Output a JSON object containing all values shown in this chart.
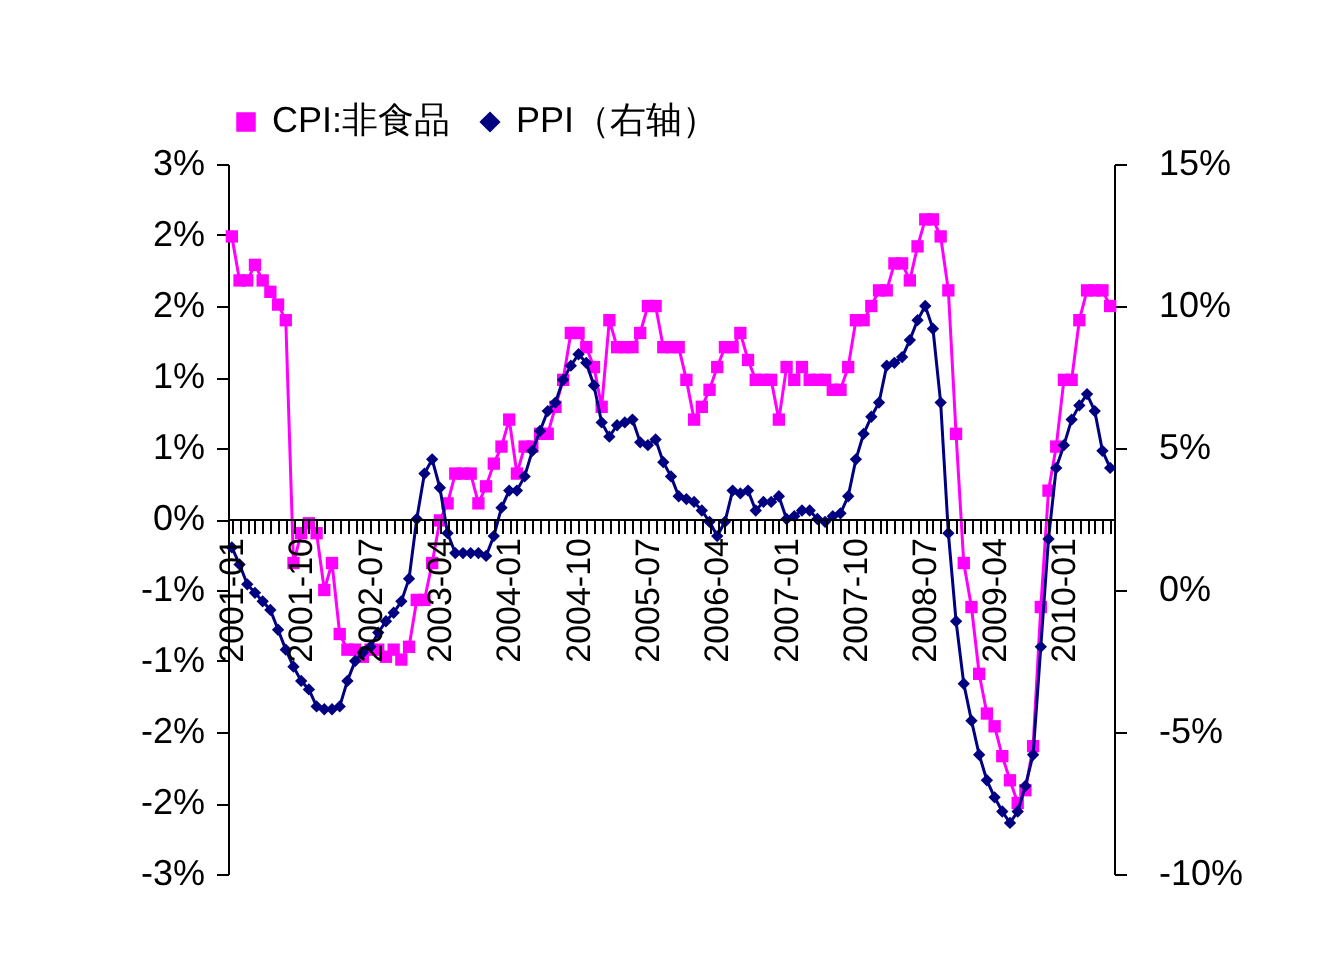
{
  "chart_data": {
    "type": "line",
    "categories": [
      "2001-01",
      null,
      null,
      null,
      null,
      null,
      null,
      null,
      null,
      "2001-10",
      null,
      null,
      null,
      null,
      null,
      null,
      null,
      null,
      "2002-07",
      null,
      null,
      null,
      null,
      null,
      null,
      null,
      null,
      "2003-04",
      null,
      null,
      null,
      null,
      null,
      null,
      null,
      null,
      "2004-01",
      null,
      null,
      null,
      null,
      null,
      null,
      null,
      null,
      "2004-10",
      null,
      null,
      null,
      null,
      null,
      null,
      null,
      null,
      "2005-07",
      null,
      null,
      null,
      null,
      null,
      null,
      null,
      null,
      "2006-04",
      null,
      null,
      null,
      null,
      null,
      null,
      null,
      null,
      "2007-01",
      null,
      null,
      null,
      null,
      null,
      null,
      null,
      null,
      "2007-10",
      null,
      null,
      null,
      null,
      null,
      null,
      null,
      null,
      "2008-07",
      null,
      null,
      null,
      null,
      null,
      null,
      null,
      null,
      "2009-04",
      null,
      null,
      null,
      null,
      null,
      null,
      null,
      null,
      "2010-01",
      null,
      null,
      null,
      null,
      null,
      null
    ],
    "series": [
      {
        "name": "CPI:非食品",
        "color": "#ff00ff",
        "marker": "square",
        "values": [
          1.99,
          1.68,
          1.68,
          1.79,
          1.68,
          1.6,
          1.51,
          1.4,
          -0.31,
          -0.1,
          -0.03,
          -0.1,
          -0.5,
          -0.31,
          -0.81,
          -0.92,
          -0.92,
          -0.97,
          -0.92,
          -0.92,
          -0.97,
          -0.92,
          -0.99,
          -0.9,
          -0.57,
          -0.57,
          -0.31,
          -0.01,
          0.11,
          0.32,
          0.32,
          0.32,
          0.11,
          0.23,
          0.39,
          0.51,
          0.7,
          0.32,
          0.51,
          0.51,
          0.6,
          0.6,
          0.79,
          0.98,
          1.31,
          1.31,
          1.21,
          1.07,
          0.79,
          1.4,
          1.21,
          1.21,
          1.21,
          1.31,
          1.5,
          1.5,
          1.21,
          1.21,
          1.21,
          0.98,
          0.7,
          0.79,
          0.91,
          1.07,
          1.21,
          1.21,
          1.31,
          1.12,
          0.98,
          0.98,
          0.98,
          0.7,
          1.07,
          0.98,
          1.07,
          0.98,
          0.98,
          0.98,
          0.91,
          0.91,
          1.07,
          1.4,
          1.4,
          1.5,
          1.61,
          1.61,
          1.8,
          1.8,
          1.68,
          1.92,
          2.11,
          2.11,
          1.99,
          1.61,
          0.6,
          -0.31,
          -0.62,
          -1.09,
          -1.37,
          -1.46,
          -1.67,
          -1.84,
          -2.0,
          -1.91,
          -1.6,
          -0.62,
          0.2,
          0.51,
          0.98,
          0.98,
          1.4,
          1.61,
          1.61,
          1.61,
          1.5
        ]
      },
      {
        "name": "PPI（右轴）",
        "color": "#000080",
        "marker": "diamond",
        "axis": "y2",
        "values": [
          1.5,
          0.9,
          0.2,
          -0.1,
          -0.4,
          -0.7,
          -1.4,
          -2.1,
          -2.7,
          -3.2,
          -3.5,
          -4.1,
          -4.2,
          -4.2,
          -4.1,
          -3.2,
          -2.5,
          -2.2,
          -2.0,
          -1.5,
          -1.1,
          -0.8,
          -0.4,
          0.4,
          2.5,
          4.1,
          4.6,
          3.6,
          2.0,
          1.3,
          1.3,
          1.3,
          1.3,
          1.2,
          1.9,
          2.9,
          3.5,
          3.5,
          4.0,
          4.9,
          5.6,
          6.3,
          6.6,
          7.4,
          7.9,
          8.3,
          8.0,
          7.2,
          5.9,
          5.4,
          5.8,
          5.9,
          6.0,
          5.2,
          5.1,
          5.3,
          4.5,
          4.0,
          3.3,
          3.2,
          3.1,
          2.8,
          2.4,
          1.9,
          2.4,
          3.5,
          3.4,
          3.5,
          2.8,
          3.1,
          3.1,
          3.3,
          2.5,
          2.6,
          2.8,
          2.8,
          2.5,
          2.4,
          2.6,
          2.7,
          3.3,
          4.6,
          5.5,
          6.1,
          6.6,
          7.9,
          8.0,
          8.2,
          8.8,
          9.5,
          10.0,
          9.2,
          6.6,
          2.0,
          -1.1,
          -3.3,
          -4.6,
          -5.8,
          -6.7,
          -7.3,
          -7.8,
          -8.2,
          -7.8,
          -6.9,
          -5.8,
          -2.0,
          1.8,
          4.3,
          5.1,
          6.0,
          6.5,
          6.9,
          6.3,
          4.9,
          4.3
        ]
      }
    ],
    "ylim": [
      -2.5,
      2.5
    ],
    "yticks": [
      {
        "value": -2.5,
        "label": "-3%"
      },
      {
        "value": -2,
        "label": "-2%"
      },
      {
        "value": -1.5,
        "label": "-2%"
      },
      {
        "value": -1,
        "label": "-1%"
      },
      {
        "value": -0.5,
        "label": "-1%"
      },
      {
        "value": 0,
        "label": "0%"
      },
      {
        "value": 0.5,
        "label": "1%"
      },
      {
        "value": 1,
        "label": "1%"
      },
      {
        "value": 1.5,
        "label": "2%"
      },
      {
        "value": 2,
        "label": "2%"
      },
      {
        "value": 2.5,
        "label": "3%"
      }
    ],
    "y2lim": [
      -10,
      15
    ],
    "y2ticks": [
      {
        "value": -10,
        "label": "-10%"
      },
      {
        "value": -5,
        "label": "-5%"
      },
      {
        "value": 0,
        "label": "0%"
      },
      {
        "value": 5,
        "label": "5%"
      },
      {
        "value": 10,
        "label": "10%"
      },
      {
        "value": 15,
        "label": "15%"
      }
    ],
    "legend": "top"
  }
}
